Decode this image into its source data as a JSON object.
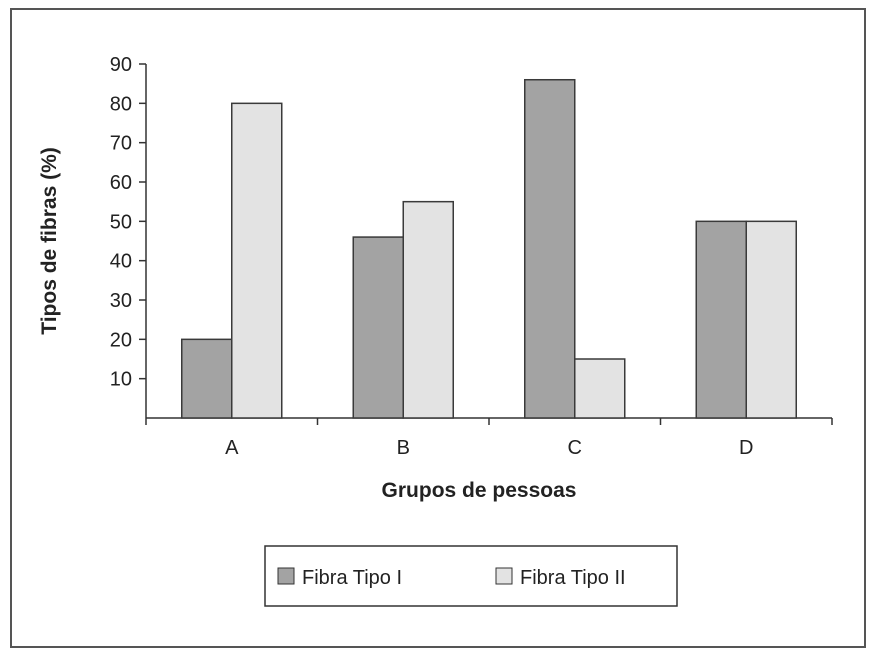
{
  "chart_data": {
    "type": "bar",
    "title": "",
    "xlabel": "Grupos de pessoas",
    "ylabel": "Tipos de fibras (%)",
    "categories": [
      "A",
      "B",
      "C",
      "D"
    ],
    "series": [
      {
        "name": "Fibra Tipo I",
        "values": [
          20,
          46,
          86,
          50
        ],
        "color": "#a3a3a3"
      },
      {
        "name": "Fibra Tipo II",
        "values": [
          80,
          55,
          15,
          50
        ],
        "color": "#e3e3e3"
      }
    ],
    "ylim": [
      0,
      90
    ],
    "yticks": [
      10,
      20,
      30,
      40,
      50,
      60,
      70,
      80,
      90
    ],
    "grid": false,
    "legend_position": "bottom"
  }
}
